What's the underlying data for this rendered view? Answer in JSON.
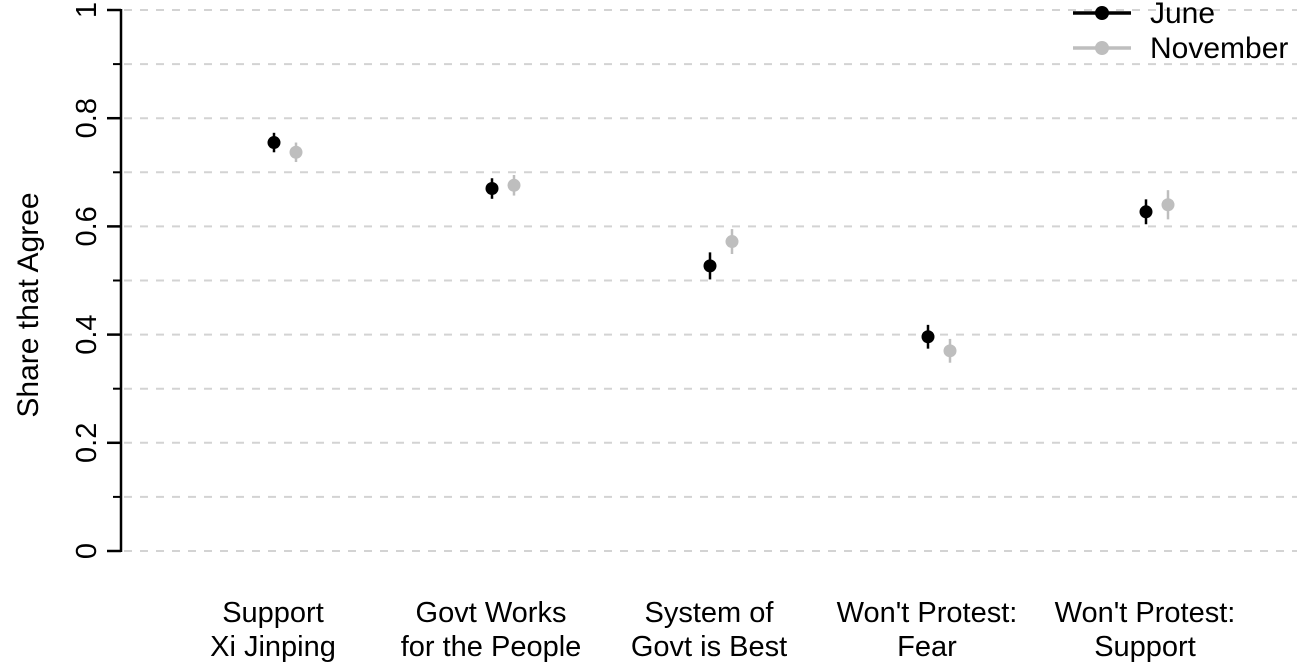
{
  "chart_data": {
    "type": "scatter",
    "title": "",
    "xlabel": "",
    "ylabel": "Share that Agree",
    "ylim": [
      0,
      1
    ],
    "y_major_ticks": [
      0,
      0.2,
      0.4,
      0.6,
      0.8,
      1
    ],
    "y_major_tick_labels": [
      "0",
      "0.2",
      "0.4",
      "0.6",
      "0.8",
      "1"
    ],
    "y_minor_ticks": [
      0.1,
      0.3,
      0.5,
      0.7,
      0.9
    ],
    "gridlines": {
      "interval": 0.1,
      "style": "dashed",
      "on": true
    },
    "legend": {
      "position": "top-right",
      "entries": [
        "June",
        "November"
      ]
    },
    "categories": [
      [
        "Support",
        "Xi Jinping"
      ],
      [
        "Govt Works",
        "for the People"
      ],
      [
        "System of",
        "Govt is Best"
      ],
      [
        "Won't Protest:",
        "Fear"
      ],
      [
        "Won't Protest:",
        "Support"
      ]
    ],
    "series": [
      {
        "name": "June",
        "color": "#000000",
        "marker": "filled-circle",
        "values": [
          0.755,
          0.67,
          0.527,
          0.396,
          0.627
        ],
        "ci_low": [
          0.737,
          0.651,
          0.502,
          0.374,
          0.604
        ],
        "ci_high": [
          0.773,
          0.689,
          0.552,
          0.418,
          0.65
        ]
      },
      {
        "name": "November",
        "color": "#bebebe",
        "marker": "filled-circle",
        "values": [
          0.737,
          0.676,
          0.572,
          0.37,
          0.64
        ],
        "ci_low": [
          0.719,
          0.657,
          0.549,
          0.348,
          0.613
        ],
        "ci_high": [
          0.755,
          0.695,
          0.595,
          0.392,
          0.667
        ]
      }
    ]
  },
  "colors": {
    "axis": "#000000",
    "grid": "#d3d3d3",
    "background": "#ffffff"
  }
}
